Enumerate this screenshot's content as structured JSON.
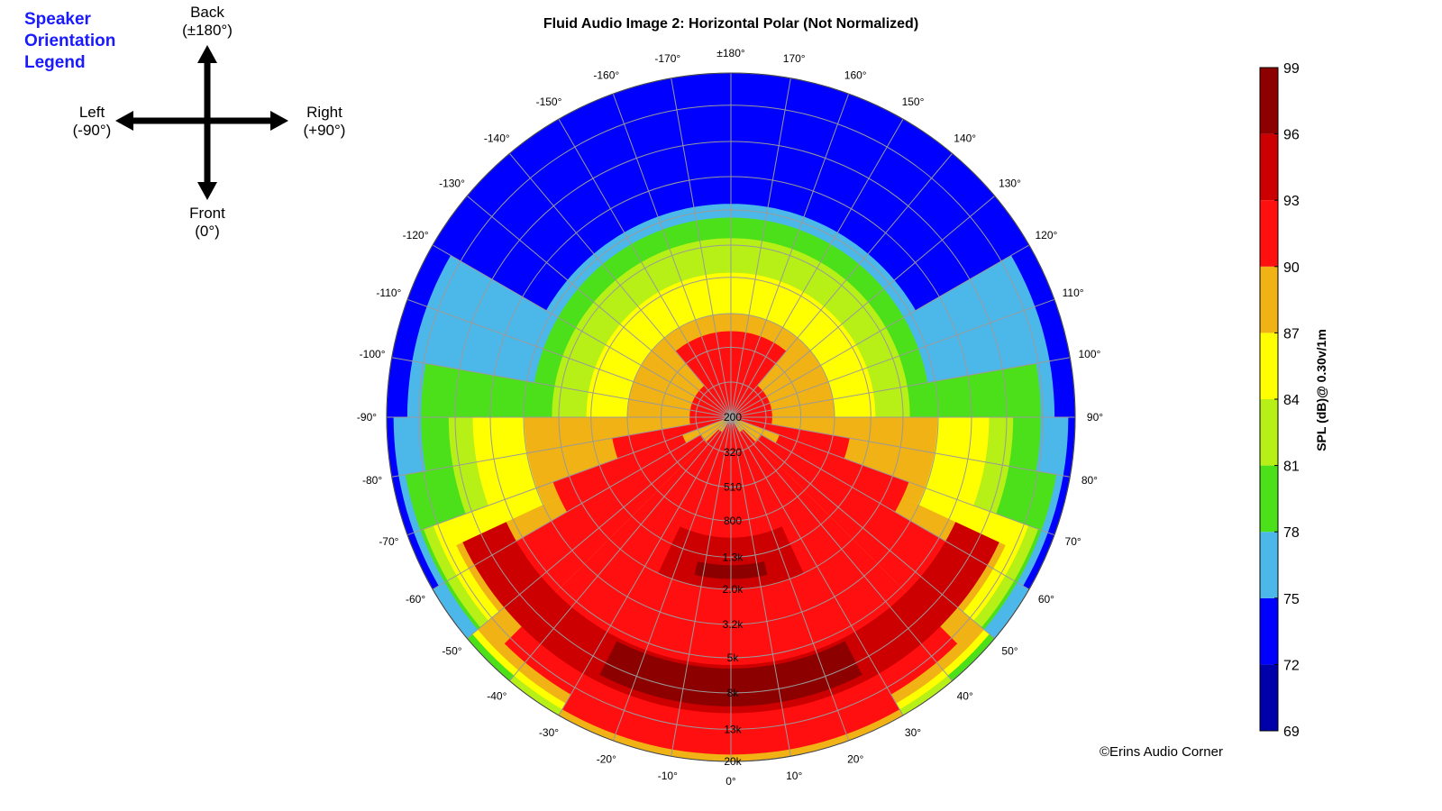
{
  "legend": {
    "title_lines": [
      "Speaker",
      "Orientation",
      "Legend"
    ],
    "back": "Back",
    "back_sub": "(±180°)",
    "left": "Left",
    "left_sub": "(-90°)",
    "right": "Right",
    "right_sub": "(+90°)",
    "front": "Front",
    "front_sub": "(0°)"
  },
  "credit": "©Erins Audio Corner",
  "colors": {
    "band_69": "#0000a8",
    "band_72": "#0000ff",
    "band_75": "#4cb8ea",
    "band_78": "#4ce01a",
    "band_81": "#b6f016",
    "band_84": "#ffff00",
    "band_87": "#f0b214",
    "band_90": "#ff0f0f",
    "band_93": "#cc0000",
    "band_96": "#8c0000",
    "grid": "#9a9a9a",
    "legend_title": "#1a1aff"
  },
  "chart_data": {
    "type": "heatmap",
    "subtype": "polar",
    "title": "Fluid Audio Image 2: Horizontal Polar (Not Normalized)",
    "colorbar_label": "SPL (dB)@ 0.30v/1m",
    "colorbar_ticks": [
      99,
      96,
      93,
      90,
      87,
      84,
      81,
      78,
      75,
      72,
      69
    ],
    "colorbar_range": [
      69,
      99
    ],
    "angle_ticks": [
      "±180°",
      "170°",
      "160°",
      "150°",
      "140°",
      "130°",
      "120°",
      "110°",
      "100°",
      "90°",
      "80°",
      "70°",
      "60°",
      "50°",
      "40°",
      "30°",
      "20°",
      "10°",
      "0°",
      "-10°",
      "-20°",
      "-30°",
      "-40°",
      "-50°",
      "-60°",
      "-70°",
      "-80°",
      "-90°",
      "-100°",
      "-110°",
      "-120°",
      "-130°",
      "-140°",
      "-150°",
      "-160°",
      "-170°"
    ],
    "angle_values": [
      180,
      170,
      160,
      150,
      140,
      130,
      120,
      110,
      100,
      90,
      80,
      70,
      60,
      50,
      40,
      30,
      20,
      10,
      0,
      -10,
      -20,
      -30,
      -40,
      -50,
      -60,
      -70,
      -80,
      -90,
      -100,
      -110,
      -120,
      -130,
      -140,
      -150,
      -160,
      -170
    ],
    "radial_axis": "frequency (Hz), log scale, center to edge",
    "radial_range_hz": [
      200,
      20000
    ],
    "radial_tick_labels": [
      "200",
      "320",
      "510",
      "800",
      "1.3k",
      "2.0k",
      "3.2k",
      "5k",
      "8k",
      "13k",
      "20k"
    ],
    "radial_tick_hz": [
      200,
      320,
      510,
      800,
      1300,
      2000,
      3200,
      5000,
      8000,
      13000,
      20000
    ],
    "spl_bands": [
      {
        "level": 96,
        "ranges": [
          [
            0,
            27,
            0.73,
            0.84
          ],
          [
            0,
            13,
            0.43,
            0.47
          ]
        ]
      },
      {
        "level": 93,
        "ranges": [
          [
            0,
            65,
            0.72,
            0.86
          ],
          [
            0,
            25,
            0.35,
            0.5
          ]
        ]
      },
      {
        "level": 90,
        "ranges": [
          [
            0,
            30,
            0,
            0.98
          ],
          [
            30,
            45,
            0.05,
            0.93
          ],
          [
            45,
            60,
            0.1,
            0.78
          ],
          [
            60,
            70,
            0.15,
            0.55
          ],
          [
            70,
            80,
            0.02,
            0.35
          ],
          [
            80,
            180,
            0,
            0.12
          ],
          [
            140,
            180,
            0,
            0.25
          ]
        ]
      },
      {
        "level": 87,
        "ranges": [
          [
            0,
            30,
            0,
            1.0
          ],
          [
            30,
            50,
            0,
            0.96
          ],
          [
            50,
            65,
            0,
            0.88
          ],
          [
            65,
            90,
            0,
            0.6
          ],
          [
            90,
            180,
            0,
            0.3
          ]
        ]
      },
      {
        "level": 84,
        "ranges": [
          [
            0,
            30,
            0,
            1.0
          ],
          [
            30,
            50,
            0,
            0.98
          ],
          [
            50,
            70,
            0,
            0.92
          ],
          [
            70,
            90,
            0,
            0.75
          ],
          [
            90,
            180,
            0,
            0.42
          ]
        ]
      },
      {
        "level": 81,
        "ranges": [
          [
            0,
            40,
            0,
            1.0
          ],
          [
            40,
            70,
            0,
            0.95
          ],
          [
            70,
            90,
            0,
            0.82
          ],
          [
            90,
            180,
            0,
            0.52
          ]
        ]
      },
      {
        "level": 78,
        "ranges": [
          [
            0,
            50,
            0,
            1.0
          ],
          [
            50,
            80,
            0,
            0.96
          ],
          [
            80,
            100,
            0,
            0.9
          ],
          [
            100,
            180,
            0,
            0.58
          ]
        ]
      },
      {
        "level": 75,
        "ranges": [
          [
            0,
            60,
            0,
            1.0
          ],
          [
            60,
            90,
            0,
            0.98
          ],
          [
            90,
            120,
            0,
            0.94
          ],
          [
            120,
            180,
            0,
            0.62
          ]
        ]
      },
      {
        "level": 72,
        "ranges": [
          [
            0,
            180,
            0,
            1.0
          ]
        ]
      },
      {
        "level": 69,
        "ranges": [
          [
            0,
            180,
            0,
            1.0
          ]
        ]
      }
    ]
  }
}
